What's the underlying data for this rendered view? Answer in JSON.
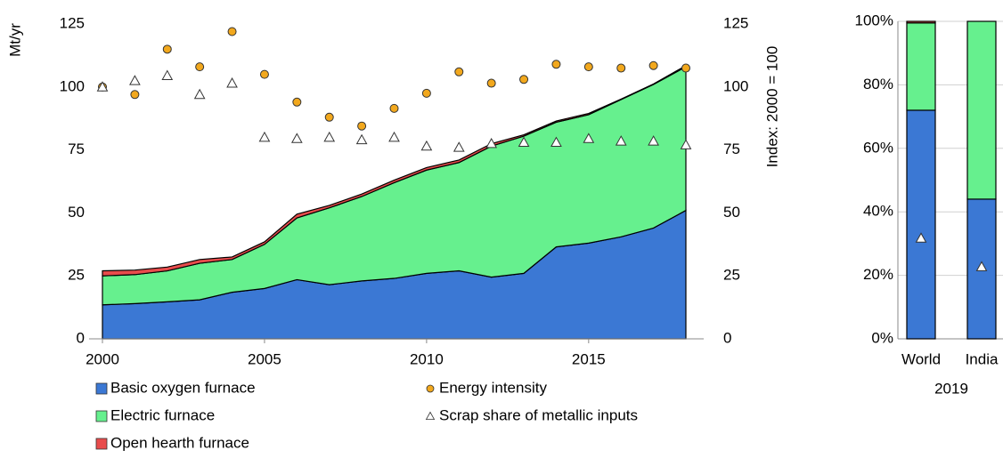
{
  "chart_data": [
    {
      "type": "area",
      "stacked": true,
      "legend": "bottom",
      "x": [
        2000,
        2001,
        2002,
        2003,
        2004,
        2005,
        2006,
        2007,
        2008,
        2009,
        2010,
        2011,
        2012,
        2013,
        2014,
        2015,
        2016,
        2017,
        2018
      ],
      "xlim": [
        2000,
        2018
      ],
      "xticks": [
        2000,
        2005,
        2010,
        2015
      ],
      "ylim": [
        0,
        125
      ],
      "yticks": [
        0,
        25,
        50,
        75,
        100,
        125
      ],
      "y2lim": [
        0,
        125
      ],
      "y2ticks": [
        0,
        25,
        50,
        75,
        100,
        125
      ],
      "ylabel": "Mt/yr",
      "y2label": "Index: 2000 = 100",
      "series": [
        {
          "name": "Basic oxygen furnace",
          "color": "#3b78d4",
          "values": [
            13.5,
            14,
            14.7,
            15.5,
            18.5,
            20,
            23.5,
            21.5,
            23,
            24,
            26,
            27,
            24.5,
            26,
            36.5,
            38,
            40.5,
            44,
            51
          ]
        },
        {
          "name": "Electric furnace",
          "color": "#66f08e",
          "values": [
            11.5,
            11.5,
            12.3,
            14.5,
            13,
            17.5,
            24.5,
            30.5,
            33.5,
            38,
            41,
            43,
            52,
            54.5,
            49.5,
            51,
            54.5,
            57,
            57
          ]
        },
        {
          "name": "Open hearth furnace",
          "color": "#e84c4c",
          "values": [
            2,
            1.8,
            1.5,
            1.5,
            1,
            1,
            1.5,
            1,
            1,
            1,
            1,
            1,
            1,
            0.5,
            0.5,
            0.5,
            0.2,
            0.2,
            0.5
          ]
        },
        {
          "name": "Energy intensity",
          "type": "scatter",
          "marker": "circle",
          "axis": "y2",
          "color": "#f2a81d",
          "values": [
            100,
            97,
            115,
            108,
            122,
            105,
            94,
            88,
            84.5,
            91.5,
            97.5,
            106,
            101.5,
            103,
            109,
            108,
            107.5,
            108.5,
            107.5
          ]
        },
        {
          "name": "Scrap share of metallic inputs",
          "type": "scatter",
          "marker": "triangle",
          "axis": "y2",
          "color": "#ffffff",
          "values": [
            100,
            102.5,
            104.5,
            97,
            101.5,
            80,
            79.5,
            80,
            79,
            80,
            76.5,
            76,
            77.5,
            78,
            78,
            79.5,
            78.5,
            78.5,
            77
          ]
        }
      ]
    },
    {
      "type": "bar",
      "stacked": true,
      "xlabel": "2019",
      "categories": [
        "World",
        "India"
      ],
      "ylim": [
        0,
        100
      ],
      "grid": true,
      "yticks": [
        {
          "value": 0,
          "label": "0%"
        },
        {
          "value": 20,
          "label": "20%"
        },
        {
          "value": 40,
          "label": "40%"
        },
        {
          "value": 60,
          "label": "60%"
        },
        {
          "value": 80,
          "label": "80%"
        },
        {
          "value": 100,
          "label": "100%"
        }
      ],
      "series": [
        {
          "color": "#3b78d4",
          "values": [
            72,
            44
          ]
        },
        {
          "color": "#66f08e",
          "values": [
            27.5,
            56
          ]
        },
        {
          "color": "#e84c4c",
          "values": [
            0.5,
            0
          ]
        },
        {
          "type": "scatter",
          "marker": "triangle",
          "color": "#ffffff",
          "values": [
            31.7,
            22.7
          ]
        }
      ]
    }
  ]
}
